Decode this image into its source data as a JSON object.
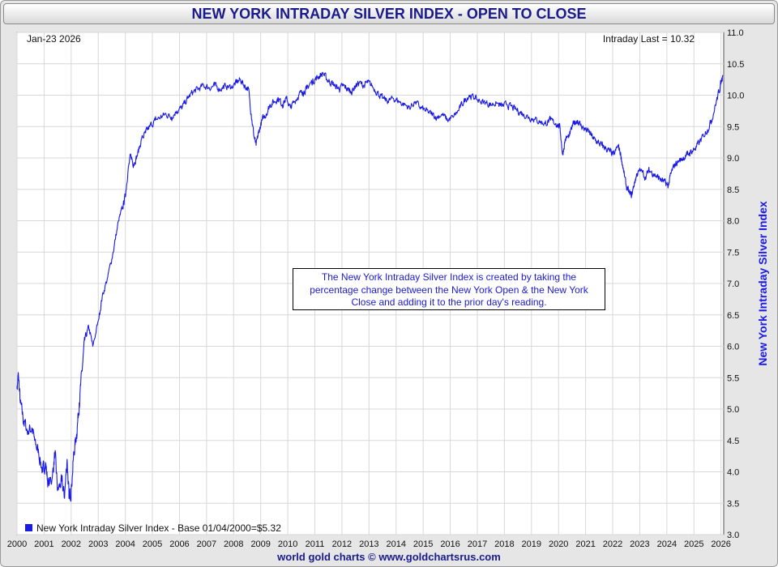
{
  "header": {
    "title": "NEW YORK INTRADAY SILVER INDEX - OPEN TO CLOSE"
  },
  "labels": {
    "date": "Jan-23  2026",
    "last": "Intraday Last = 10.32",
    "note": "The New York Intraday Silver Index is created by taking the percentage change between the New York Open & the New York Close and adding it to the prior day's reading.",
    "legend": "New York Intraday Silver Index - Base 01/04/2000=$5.32",
    "footer": "world gold charts © www.goldchartsrus.com"
  },
  "colors": {
    "line": "#1a1ae6",
    "title": "#1a1a8c",
    "grid": "#d8d8d8"
  },
  "chart_data": {
    "type": "line",
    "title": "NEW YORK INTRADAY SILVER INDEX - OPEN TO CLOSE",
    "ylabel": "New York Intraday Silver Index",
    "xlabel": "",
    "ylim": [
      3.0,
      11.0
    ],
    "xlim": [
      2000.0,
      2026.1
    ],
    "grid": true,
    "legend_position": "bottom-left",
    "y_ticks": [
      "3.0",
      "3.5",
      "4.0",
      "4.5",
      "5.0",
      "5.5",
      "6.0",
      "6.5",
      "7.0",
      "7.5",
      "8.0",
      "8.5",
      "9.0",
      "9.5",
      "10.0",
      "10.5",
      "11.0"
    ],
    "x_ticks": [
      "2000",
      "2001",
      "2002",
      "2003",
      "2004",
      "2005",
      "2006",
      "2007",
      "2008",
      "2009",
      "2010",
      "2011",
      "2012",
      "2013",
      "2014",
      "2015",
      "2016",
      "2017",
      "2018",
      "2019",
      "2020",
      "2021",
      "2022",
      "2023",
      "2024",
      "2025",
      "2026"
    ],
    "series": [
      {
        "name": "New York Intraday Silver Index - Base 01/04/2000=$5.32",
        "points": [
          [
            2000.0,
            5.32
          ],
          [
            2000.05,
            5.55
          ],
          [
            2000.12,
            5.1
          ],
          [
            2000.25,
            4.8
          ],
          [
            2000.4,
            4.65
          ],
          [
            2000.55,
            4.7
          ],
          [
            2000.65,
            4.5
          ],
          [
            2000.8,
            4.3
          ],
          [
            2000.95,
            4.0
          ],
          [
            2001.05,
            4.15
          ],
          [
            2001.15,
            3.8
          ],
          [
            2001.3,
            3.9
          ],
          [
            2001.4,
            4.3
          ],
          [
            2001.5,
            3.7
          ],
          [
            2001.65,
            3.85
          ],
          [
            2001.75,
            3.6
          ],
          [
            2001.85,
            4.2
          ],
          [
            2001.92,
            3.58
          ],
          [
            2002.0,
            3.7
          ],
          [
            2002.1,
            4.3
          ],
          [
            2002.2,
            4.6
          ],
          [
            2002.3,
            5.1
          ],
          [
            2002.4,
            5.6
          ],
          [
            2002.5,
            6.1
          ],
          [
            2002.65,
            6.3
          ],
          [
            2002.8,
            6.0
          ],
          [
            2003.0,
            6.4
          ],
          [
            2003.15,
            6.8
          ],
          [
            2003.35,
            7.1
          ],
          [
            2003.55,
            7.5
          ],
          [
            2003.75,
            8.0
          ],
          [
            2003.9,
            8.2
          ],
          [
            2004.0,
            8.4
          ],
          [
            2004.1,
            8.8
          ],
          [
            2004.2,
            9.05
          ],
          [
            2004.3,
            8.9
          ],
          [
            2004.45,
            9.05
          ],
          [
            2004.6,
            9.3
          ],
          [
            2004.75,
            9.4
          ],
          [
            2004.9,
            9.5
          ],
          [
            2005.1,
            9.6
          ],
          [
            2005.3,
            9.65
          ],
          [
            2005.5,
            9.7
          ],
          [
            2005.7,
            9.65
          ],
          [
            2005.9,
            9.75
          ],
          [
            2006.1,
            9.8
          ],
          [
            2006.3,
            9.95
          ],
          [
            2006.5,
            10.05
          ],
          [
            2006.7,
            10.1
          ],
          [
            2006.9,
            10.15
          ],
          [
            2007.1,
            10.12
          ],
          [
            2007.3,
            10.15
          ],
          [
            2007.5,
            10.1
          ],
          [
            2007.7,
            10.15
          ],
          [
            2007.9,
            10.12
          ],
          [
            2008.1,
            10.2
          ],
          [
            2008.25,
            10.25
          ],
          [
            2008.4,
            10.15
          ],
          [
            2008.55,
            10.1
          ],
          [
            2008.65,
            9.7
          ],
          [
            2008.75,
            9.35
          ],
          [
            2008.83,
            9.2
          ],
          [
            2008.92,
            9.4
          ],
          [
            2009.05,
            9.6
          ],
          [
            2009.2,
            9.7
          ],
          [
            2009.35,
            9.85
          ],
          [
            2009.5,
            9.9
          ],
          [
            2009.65,
            9.95
          ],
          [
            2009.8,
            9.85
          ],
          [
            2009.95,
            9.95
          ],
          [
            2010.1,
            9.8
          ],
          [
            2010.25,
            9.9
          ],
          [
            2010.4,
            10.0
          ],
          [
            2010.55,
            10.05
          ],
          [
            2010.7,
            10.1
          ],
          [
            2010.85,
            10.2
          ],
          [
            2011.0,
            10.25
          ],
          [
            2011.15,
            10.3
          ],
          [
            2011.3,
            10.35
          ],
          [
            2011.45,
            10.25
          ],
          [
            2011.6,
            10.2
          ],
          [
            2011.75,
            10.15
          ],
          [
            2011.9,
            10.1
          ],
          [
            2012.05,
            10.15
          ],
          [
            2012.2,
            10.1
          ],
          [
            2012.35,
            10.05
          ],
          [
            2012.5,
            10.15
          ],
          [
            2012.65,
            10.2
          ],
          [
            2012.8,
            10.15
          ],
          [
            2012.95,
            10.2
          ],
          [
            2013.1,
            10.15
          ],
          [
            2013.3,
            10.05
          ],
          [
            2013.5,
            9.95
          ],
          [
            2013.7,
            9.9
          ],
          [
            2013.9,
            9.95
          ],
          [
            2014.1,
            9.9
          ],
          [
            2014.3,
            9.85
          ],
          [
            2014.5,
            9.8
          ],
          [
            2014.7,
            9.9
          ],
          [
            2014.9,
            9.8
          ],
          [
            2015.1,
            9.75
          ],
          [
            2015.3,
            9.7
          ],
          [
            2015.5,
            9.65
          ],
          [
            2015.7,
            9.7
          ],
          [
            2015.9,
            9.6
          ],
          [
            2016.1,
            9.65
          ],
          [
            2016.3,
            9.75
          ],
          [
            2016.5,
            9.9
          ],
          [
            2016.7,
            10.0
          ],
          [
            2016.9,
            9.95
          ],
          [
            2017.1,
            9.9
          ],
          [
            2017.3,
            9.88
          ],
          [
            2017.5,
            9.85
          ],
          [
            2017.7,
            9.88
          ],
          [
            2017.9,
            9.82
          ],
          [
            2018.1,
            9.85
          ],
          [
            2018.3,
            9.8
          ],
          [
            2018.5,
            9.75
          ],
          [
            2018.7,
            9.7
          ],
          [
            2018.9,
            9.65
          ],
          [
            2019.1,
            9.62
          ],
          [
            2019.3,
            9.58
          ],
          [
            2019.5,
            9.55
          ],
          [
            2019.7,
            9.6
          ],
          [
            2019.9,
            9.55
          ],
          [
            2020.05,
            9.5
          ],
          [
            2020.15,
            9.05
          ],
          [
            2020.25,
            9.3
          ],
          [
            2020.4,
            9.35
          ],
          [
            2020.55,
            9.55
          ],
          [
            2020.7,
            9.6
          ],
          [
            2020.85,
            9.5
          ],
          [
            2021.0,
            9.45
          ],
          [
            2021.15,
            9.4
          ],
          [
            2021.3,
            9.3
          ],
          [
            2021.45,
            9.25
          ],
          [
            2021.6,
            9.2
          ],
          [
            2021.75,
            9.15
          ],
          [
            2021.9,
            9.1
          ],
          [
            2022.05,
            9.05
          ],
          [
            2022.2,
            9.2
          ],
          [
            2022.3,
            9.05
          ],
          [
            2022.4,
            8.8
          ],
          [
            2022.5,
            8.55
          ],
          [
            2022.6,
            8.45
          ],
          [
            2022.7,
            8.4
          ],
          [
            2022.8,
            8.6
          ],
          [
            2022.9,
            8.75
          ],
          [
            2023.05,
            8.8
          ],
          [
            2023.2,
            8.7
          ],
          [
            2023.35,
            8.8
          ],
          [
            2023.5,
            8.75
          ],
          [
            2023.65,
            8.7
          ],
          [
            2023.8,
            8.65
          ],
          [
            2023.95,
            8.6
          ],
          [
            2024.05,
            8.55
          ],
          [
            2024.15,
            8.75
          ],
          [
            2024.3,
            8.9
          ],
          [
            2024.45,
            8.95
          ],
          [
            2024.6,
            9.0
          ],
          [
            2024.75,
            9.05
          ],
          [
            2024.9,
            9.1
          ],
          [
            2025.05,
            9.15
          ],
          [
            2025.2,
            9.25
          ],
          [
            2025.35,
            9.35
          ],
          [
            2025.5,
            9.45
          ],
          [
            2025.65,
            9.6
          ],
          [
            2025.8,
            9.85
          ],
          [
            2025.92,
            10.05
          ],
          [
            2026.0,
            10.2
          ],
          [
            2026.06,
            10.32
          ]
        ]
      }
    ]
  }
}
